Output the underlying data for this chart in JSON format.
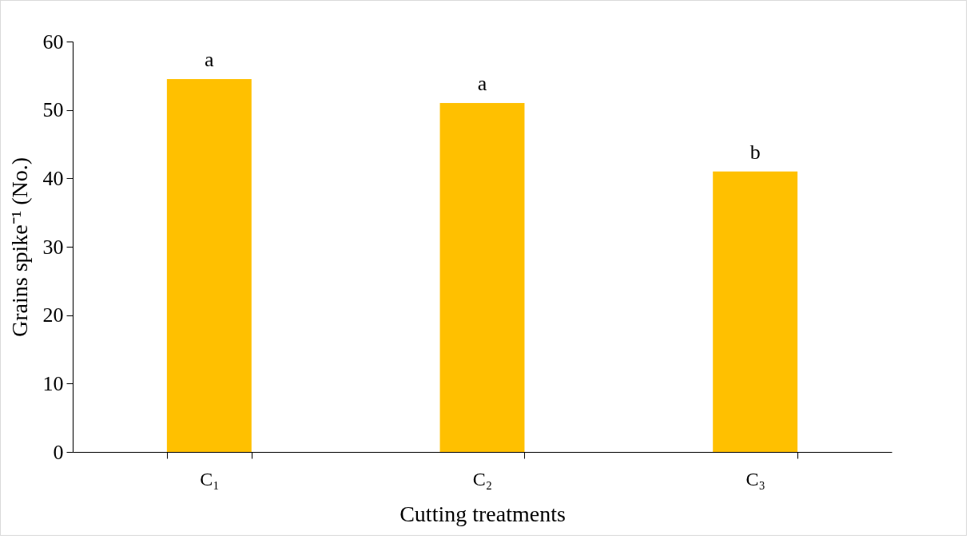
{
  "chart_data": {
    "type": "bar",
    "xlabel": "Cutting treatments",
    "ylabel": "Grains spike⁻¹ (No.)",
    "categories": [
      "C₁",
      "C₂",
      "C₃"
    ],
    "values": [
      54.5,
      51.0,
      41.0
    ],
    "color": "#ffc000",
    "ylim": [
      0,
      60
    ],
    "yticks": [
      0,
      10,
      20,
      30,
      40,
      50,
      60
    ],
    "annotations": [
      {
        "text": "a",
        "x": "C₁",
        "y": 54.5
      },
      {
        "text": "a",
        "x": "C₂",
        "y": 51.0
      },
      {
        "text": "b",
        "x": "C₃",
        "y": 41.0
      }
    ]
  }
}
